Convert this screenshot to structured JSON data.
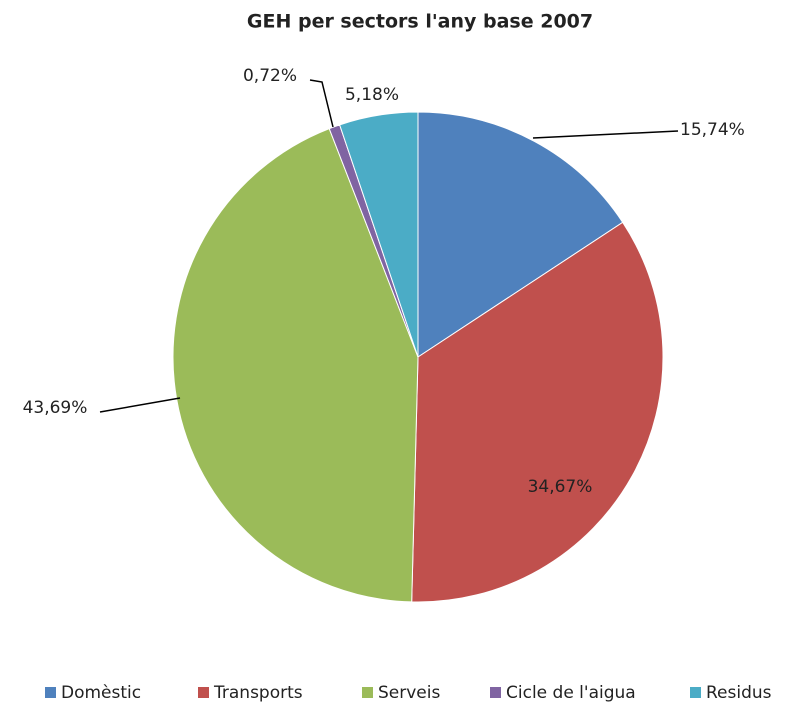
{
  "chart_data": {
    "type": "pie",
    "title": "GEH per sectors  l'any base 2007",
    "categories": [
      "Domèstic",
      "Transports",
      "Serveis",
      "Cicle de l'aigua",
      "Residus"
    ],
    "values": [
      15.74,
      34.67,
      43.69,
      0.72,
      5.18
    ],
    "value_labels": [
      "15,74%",
      "34,67%",
      "43,69%",
      "0,72%",
      "5,18%"
    ],
    "colors": [
      "#4f81bd",
      "#c0504d",
      "#9bbb59",
      "#8064a2",
      "#4bacc6"
    ],
    "legend": "bottom"
  }
}
